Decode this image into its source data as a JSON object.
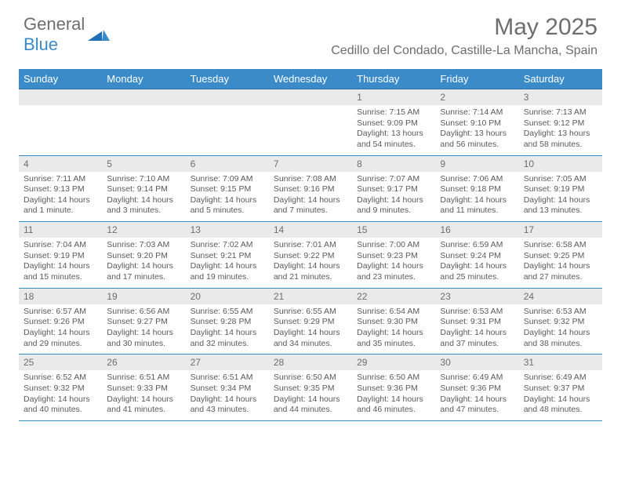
{
  "brand": {
    "word1": "General",
    "word2": "Blue"
  },
  "title": "May 2025",
  "location": "Cedillo del Condado, Castille-La Mancha, Spain",
  "colors": {
    "header_bg": "#3b8bc9",
    "header_text": "#ffffff",
    "band_bg": "#eaeaea",
    "rule": "#3b8bc9",
    "text": "#5a5a5a",
    "title_text": "#6e6e6e"
  },
  "days_of_week": [
    "Sunday",
    "Monday",
    "Tuesday",
    "Wednesday",
    "Thursday",
    "Friday",
    "Saturday"
  ],
  "weeks": [
    [
      null,
      null,
      null,
      null,
      {
        "n": "1",
        "sr": "7:15 AM",
        "ss": "9:09 PM",
        "dl": "13 hours and 54 minutes."
      },
      {
        "n": "2",
        "sr": "7:14 AM",
        "ss": "9:10 PM",
        "dl": "13 hours and 56 minutes."
      },
      {
        "n": "3",
        "sr": "7:13 AM",
        "ss": "9:12 PM",
        "dl": "13 hours and 58 minutes."
      }
    ],
    [
      {
        "n": "4",
        "sr": "7:11 AM",
        "ss": "9:13 PM",
        "dl": "14 hours and 1 minute."
      },
      {
        "n": "5",
        "sr": "7:10 AM",
        "ss": "9:14 PM",
        "dl": "14 hours and 3 minutes."
      },
      {
        "n": "6",
        "sr": "7:09 AM",
        "ss": "9:15 PM",
        "dl": "14 hours and 5 minutes."
      },
      {
        "n": "7",
        "sr": "7:08 AM",
        "ss": "9:16 PM",
        "dl": "14 hours and 7 minutes."
      },
      {
        "n": "8",
        "sr": "7:07 AM",
        "ss": "9:17 PM",
        "dl": "14 hours and 9 minutes."
      },
      {
        "n": "9",
        "sr": "7:06 AM",
        "ss": "9:18 PM",
        "dl": "14 hours and 11 minutes."
      },
      {
        "n": "10",
        "sr": "7:05 AM",
        "ss": "9:19 PM",
        "dl": "14 hours and 13 minutes."
      }
    ],
    [
      {
        "n": "11",
        "sr": "7:04 AM",
        "ss": "9:19 PM",
        "dl": "14 hours and 15 minutes."
      },
      {
        "n": "12",
        "sr": "7:03 AM",
        "ss": "9:20 PM",
        "dl": "14 hours and 17 minutes."
      },
      {
        "n": "13",
        "sr": "7:02 AM",
        "ss": "9:21 PM",
        "dl": "14 hours and 19 minutes."
      },
      {
        "n": "14",
        "sr": "7:01 AM",
        "ss": "9:22 PM",
        "dl": "14 hours and 21 minutes."
      },
      {
        "n": "15",
        "sr": "7:00 AM",
        "ss": "9:23 PM",
        "dl": "14 hours and 23 minutes."
      },
      {
        "n": "16",
        "sr": "6:59 AM",
        "ss": "9:24 PM",
        "dl": "14 hours and 25 minutes."
      },
      {
        "n": "17",
        "sr": "6:58 AM",
        "ss": "9:25 PM",
        "dl": "14 hours and 27 minutes."
      }
    ],
    [
      {
        "n": "18",
        "sr": "6:57 AM",
        "ss": "9:26 PM",
        "dl": "14 hours and 29 minutes."
      },
      {
        "n": "19",
        "sr": "6:56 AM",
        "ss": "9:27 PM",
        "dl": "14 hours and 30 minutes."
      },
      {
        "n": "20",
        "sr": "6:55 AM",
        "ss": "9:28 PM",
        "dl": "14 hours and 32 minutes."
      },
      {
        "n": "21",
        "sr": "6:55 AM",
        "ss": "9:29 PM",
        "dl": "14 hours and 34 minutes."
      },
      {
        "n": "22",
        "sr": "6:54 AM",
        "ss": "9:30 PM",
        "dl": "14 hours and 35 minutes."
      },
      {
        "n": "23",
        "sr": "6:53 AM",
        "ss": "9:31 PM",
        "dl": "14 hours and 37 minutes."
      },
      {
        "n": "24",
        "sr": "6:53 AM",
        "ss": "9:32 PM",
        "dl": "14 hours and 38 minutes."
      }
    ],
    [
      {
        "n": "25",
        "sr": "6:52 AM",
        "ss": "9:32 PM",
        "dl": "14 hours and 40 minutes."
      },
      {
        "n": "26",
        "sr": "6:51 AM",
        "ss": "9:33 PM",
        "dl": "14 hours and 41 minutes."
      },
      {
        "n": "27",
        "sr": "6:51 AM",
        "ss": "9:34 PM",
        "dl": "14 hours and 43 minutes."
      },
      {
        "n": "28",
        "sr": "6:50 AM",
        "ss": "9:35 PM",
        "dl": "14 hours and 44 minutes."
      },
      {
        "n": "29",
        "sr": "6:50 AM",
        "ss": "9:36 PM",
        "dl": "14 hours and 46 minutes."
      },
      {
        "n": "30",
        "sr": "6:49 AM",
        "ss": "9:36 PM",
        "dl": "14 hours and 47 minutes."
      },
      {
        "n": "31",
        "sr": "6:49 AM",
        "ss": "9:37 PM",
        "dl": "14 hours and 48 minutes."
      }
    ]
  ],
  "labels": {
    "sunrise": "Sunrise:",
    "sunset": "Sunset:",
    "daylight": "Daylight:"
  }
}
